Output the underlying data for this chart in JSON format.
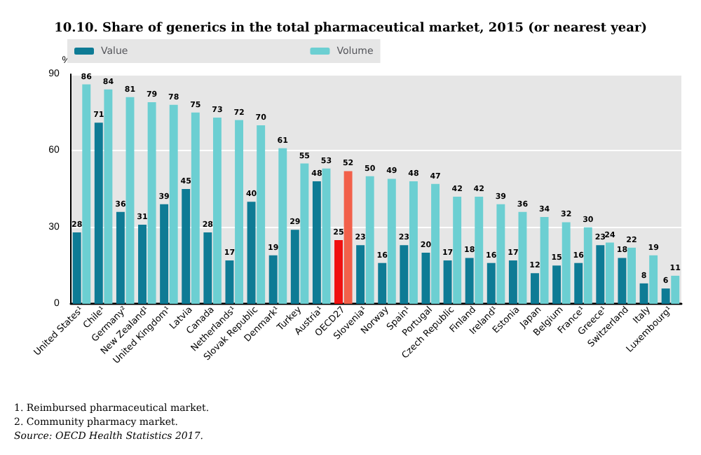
{
  "chart_data": {
    "type": "bar",
    "title": "10.10. Share of generics in the total pharmaceutical market, 2015 (or nearest year)",
    "ylabel": "%",
    "categories": [
      "United States¹",
      "Chile¹",
      "Germany²",
      "New Zealand¹",
      "United Kingdom¹",
      "Latvia",
      "Canada",
      "Netherlands¹",
      "Slovak Republic",
      "Denmark¹",
      "Turkey",
      "Austria¹",
      "OECD27",
      "Slovenia¹",
      "Norway",
      "Spain¹",
      "Portugal",
      "Czech Republic",
      "Finland",
      "Ireland¹",
      "Estonia",
      "Japan",
      "Belgium",
      "France¹",
      "Greece¹",
      "Switzerland",
      "Italy",
      "Luxembourg¹"
    ],
    "series": [
      {
        "name": "Value",
        "color": "#0e7b95",
        "colors": [
          "#0e7b95",
          "#0e7b95",
          "#0e7b95",
          "#0e7b95",
          "#0e7b95",
          "#0e7b95",
          "#0e7b95",
          "#0e7b95",
          "#0e7b95",
          "#0e7b95",
          "#0e7b95",
          "#0e7b95",
          "#f01010",
          "#0e7b95",
          "#0e7b95",
          "#0e7b95",
          "#0e7b95",
          "#0e7b95",
          "#0e7b95",
          "#0e7b95",
          "#0e7b95",
          "#0e7b95",
          "#0e7b95",
          "#0e7b95",
          "#0e7b95",
          "#0e7b95",
          "#0e7b95",
          "#0e7b95"
        ],
        "values": [
          28,
          71,
          36,
          31,
          39,
          45,
          28,
          17,
          40,
          19,
          29,
          48,
          25,
          23,
          16,
          23,
          20,
          17,
          18,
          16,
          17,
          12,
          15,
          16,
          23,
          18,
          8,
          6
        ]
      },
      {
        "name": "Volume",
        "color": "#6ccfd2",
        "colors": [
          "#6ccfd2",
          "#6ccfd2",
          "#6ccfd2",
          "#6ccfd2",
          "#6ccfd2",
          "#6ccfd2",
          "#6ccfd2",
          "#6ccfd2",
          "#6ccfd2",
          "#6ccfd2",
          "#6ccfd2",
          "#6ccfd2",
          "#f2604a",
          "#6ccfd2",
          "#6ccfd2",
          "#6ccfd2",
          "#6ccfd2",
          "#6ccfd2",
          "#6ccfd2",
          "#6ccfd2",
          "#6ccfd2",
          "#6ccfd2",
          "#6ccfd2",
          "#6ccfd2",
          "#6ccfd2",
          "#6ccfd2",
          "#6ccfd2",
          "#6ccfd2"
        ],
        "values": [
          86,
          84,
          81,
          79,
          78,
          75,
          73,
          72,
          70,
          61,
          55,
          53,
          52,
          50,
          49,
          48,
          47,
          42,
          42,
          39,
          36,
          34,
          32,
          30,
          24,
          22,
          19,
          11
        ]
      }
    ],
    "ylim": [
      0,
      90
    ],
    "yticks": [
      0,
      30,
      60,
      90
    ],
    "grid": "y",
    "legend": "top",
    "data_labels": true,
    "annotations": [
      "1. Reimbursed pharmaceutical market.",
      "2. Community pharmacy market.",
      "Source: OECD Health Statistics 2017."
    ]
  }
}
